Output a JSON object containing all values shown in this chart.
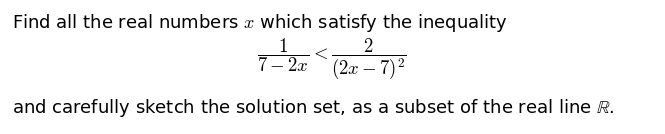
{
  "line1": "Find all the real numbers $x$ which satisfy the inequality",
  "line2_math": "$\\dfrac{1}{7-2x} < \\dfrac{2}{(2x-7)^2}$",
  "line3": "and carefully sketch the solution set, as a subset of the real line $\\mathbb{R}$.",
  "bg_color": "#ffffff",
  "text_color": "#000000",
  "fontsize_text": 13.0,
  "fontsize_math": 13.5,
  "fig_width": 6.65,
  "fig_height": 1.34,
  "dpi": 100
}
